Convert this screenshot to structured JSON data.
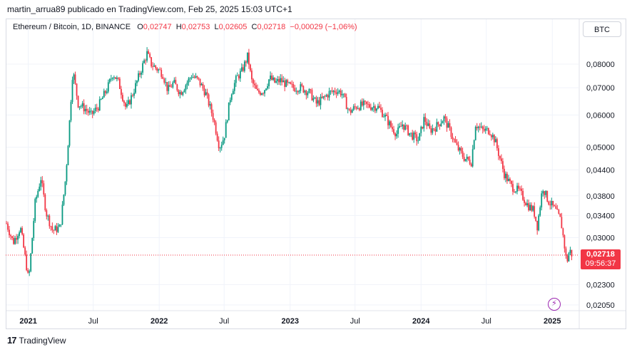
{
  "caption": "martin_arrua89 publicado en TradingView.com, Feb 25, 2025 15:03 UTC+1",
  "legend": {
    "symbol": "Ethereum / Bitcoin, 1D, BINANCE",
    "o_label": "O",
    "o_value": "0,02747",
    "h_label": "H",
    "h_value": "0,02753",
    "l_label": "L",
    "l_value": "0,02605",
    "c_label": "C",
    "c_value": "0,02718",
    "change": "−0,00029 (−1,06%)"
  },
  "currency_button": "BTC",
  "last_price": "0,02718",
  "countdown": "09:56:37",
  "brand": "TradingView",
  "colors": {
    "up": "#089981",
    "down": "#f23645",
    "grid": "#f0f3fa",
    "axis_text": "#131722"
  },
  "chart_data": {
    "type": "candlestick",
    "symbol": "ETH/BTC",
    "interval": "1D",
    "scale": "log",
    "y_ticks": [
      0.08,
      0.07,
      0.06,
      0.05,
      0.044,
      0.038,
      0.034,
      0.03,
      0.023,
      0.0205
    ],
    "y_tick_labels": [
      "0,08000",
      "0,07000",
      "0,06000",
      "0,05000",
      "0,04400",
      "0,03800",
      "0,03400",
      "0,03000",
      "0,02300",
      "0,02050"
    ],
    "x_labels": [
      "2021",
      "Jul",
      "2022",
      "Jul",
      "2023",
      "Jul",
      "2024",
      "Jul",
      "2025"
    ],
    "x_label_dates": [
      "2021-01-01",
      "2021-07-01",
      "2022-01-01",
      "2022-07-01",
      "2023-01-01",
      "2023-07-01",
      "2024-01-01",
      "2024-07-01",
      "2025-01-01"
    ],
    "x_range": [
      "2020-11-01",
      "2025-03-15"
    ],
    "last_close": 0.02718,
    "price_path": [
      [
        "2020-11-01",
        0.0325
      ],
      [
        "2020-11-20",
        0.0292
      ],
      [
        "2020-12-10",
        0.0318
      ],
      [
        "2020-12-25",
        0.0262
      ],
      [
        "2021-01-02",
        0.0235
      ],
      [
        "2021-01-20",
        0.0365
      ],
      [
        "2021-02-05",
        0.042
      ],
      [
        "2021-02-20",
        0.0345
      ],
      [
        "2021-03-10",
        0.0312
      ],
      [
        "2021-03-31",
        0.0318
      ],
      [
        "2021-04-15",
        0.042
      ],
      [
        "2021-04-25",
        0.056
      ],
      [
        "2021-05-05",
        0.0775
      ],
      [
        "2021-05-20",
        0.064
      ],
      [
        "2021-06-10",
        0.062
      ],
      [
        "2021-06-25",
        0.06
      ],
      [
        "2021-07-15",
        0.063
      ],
      [
        "2021-08-10",
        0.07
      ],
      [
        "2021-08-25",
        0.076
      ],
      [
        "2021-09-10",
        0.072
      ],
      [
        "2021-10-01",
        0.062
      ],
      [
        "2021-10-20",
        0.068
      ],
      [
        "2021-11-08",
        0.076
      ],
      [
        "2021-11-28",
        0.085
      ],
      [
        "2021-12-10",
        0.08
      ],
      [
        "2021-12-25",
        0.078
      ],
      [
        "2022-01-10",
        0.076
      ],
      [
        "2022-01-25",
        0.069
      ],
      [
        "2022-02-10",
        0.072
      ],
      [
        "2022-03-01",
        0.068
      ],
      [
        "2022-04-01",
        0.075
      ],
      [
        "2022-04-20",
        0.073
      ],
      [
        "2022-05-10",
        0.068
      ],
      [
        "2022-06-01",
        0.059
      ],
      [
        "2022-06-18",
        0.05
      ],
      [
        "2022-07-01",
        0.053
      ],
      [
        "2022-07-20",
        0.068
      ],
      [
        "2022-08-05",
        0.074
      ],
      [
        "2022-08-20",
        0.077
      ],
      [
        "2022-09-05",
        0.084
      ],
      [
        "2022-09-15",
        0.073
      ],
      [
        "2022-10-01",
        0.068
      ],
      [
        "2022-10-20",
        0.069
      ],
      [
        "2022-11-05",
        0.074
      ],
      [
        "2022-11-20",
        0.072
      ],
      [
        "2022-12-05",
        0.073
      ],
      [
        "2022-12-25",
        0.071
      ],
      [
        "2023-01-10",
        0.07
      ],
      [
        "2023-02-01",
        0.07
      ],
      [
        "2023-02-25",
        0.068
      ],
      [
        "2023-03-15",
        0.064
      ],
      [
        "2023-04-05",
        0.066
      ],
      [
        "2023-04-20",
        0.068
      ],
      [
        "2023-05-10",
        0.069
      ],
      [
        "2023-05-25",
        0.068
      ],
      [
        "2023-06-15",
        0.061
      ],
      [
        "2023-07-05",
        0.063
      ],
      [
        "2023-07-25",
        0.0635
      ],
      [
        "2023-08-15",
        0.063
      ],
      [
        "2023-09-01",
        0.063
      ],
      [
        "2023-09-20",
        0.06
      ],
      [
        "2023-10-10",
        0.056
      ],
      [
        "2023-10-25",
        0.054
      ],
      [
        "2023-11-10",
        0.057
      ],
      [
        "2023-12-01",
        0.054
      ],
      [
        "2023-12-25",
        0.052
      ],
      [
        "2024-01-10",
        0.059
      ],
      [
        "2024-01-25",
        0.055
      ],
      [
        "2024-02-10",
        0.056
      ],
      [
        "2024-03-05",
        0.059
      ],
      [
        "2024-03-25",
        0.054
      ],
      [
        "2024-04-10",
        0.05
      ],
      [
        "2024-05-01",
        0.047
      ],
      [
        "2024-05-20",
        0.046
      ],
      [
        "2024-06-01",
        0.057
      ],
      [
        "2024-06-20",
        0.055
      ],
      [
        "2024-07-10",
        0.055
      ],
      [
        "2024-07-25",
        0.052
      ],
      [
        "2024-08-05",
        0.048
      ],
      [
        "2024-08-20",
        0.043
      ],
      [
        "2024-09-10",
        0.04
      ],
      [
        "2024-10-01",
        0.039
      ],
      [
        "2024-10-25",
        0.036
      ],
      [
        "2024-11-10",
        0.035
      ],
      [
        "2024-11-20",
        0.032
      ],
      [
        "2024-12-05",
        0.04
      ],
      [
        "2024-12-20",
        0.037
      ],
      [
        "2025-01-10",
        0.035
      ],
      [
        "2025-01-25",
        0.033
      ],
      [
        "2025-02-03",
        0.029
      ],
      [
        "2025-02-10",
        0.026
      ],
      [
        "2025-02-18",
        0.028
      ],
      [
        "2025-02-25",
        0.02718
      ]
    ]
  }
}
